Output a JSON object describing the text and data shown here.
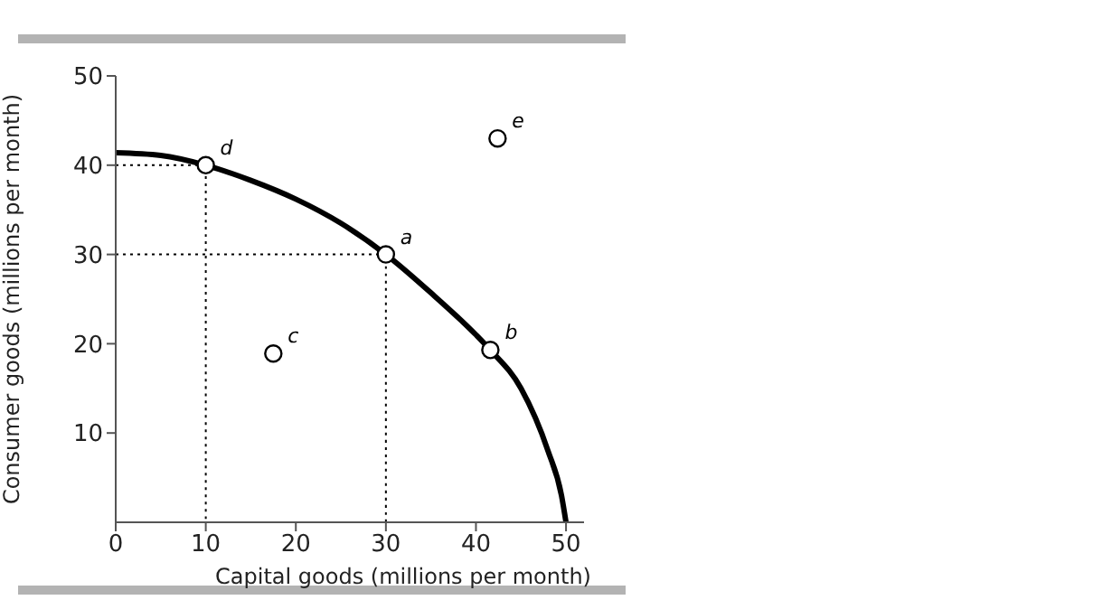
{
  "chart_data": {
    "type": "line",
    "xlabel": "Capital goods (millions per month)",
    "ylabel": "Consumer goods (millions  per month)",
    "xlim": [
      0,
      52
    ],
    "ylim": [
      0,
      50
    ],
    "xticks": [
      0,
      10,
      20,
      30,
      40,
      50
    ],
    "yticks": [
      10,
      20,
      30,
      40,
      50
    ],
    "grid": false,
    "series": [
      {
        "color": "#000000",
        "line_style": "solid",
        "marker": "none",
        "x": [
          0,
          5,
          10,
          15,
          20,
          25,
          30,
          35,
          40,
          41.6,
          45,
          48,
          49.5,
          50
        ],
        "values": [
          41.4,
          41.1,
          40,
          38.3,
          36.2,
          33.5,
          30,
          25.7,
          21,
          19.3,
          15,
          8,
          3,
          0
        ]
      },
      {
        "color": "#000000",
        "line_style": "dotted",
        "marker": "none",
        "x": [
          0,
          10,
          10
        ],
        "values": [
          40,
          40,
          0
        ]
      },
      {
        "color": "#000000",
        "line_style": "dotted",
        "marker": "none",
        "x": [
          0,
          30,
          30
        ],
        "values": [
          30,
          30,
          0
        ]
      },
      {
        "type": "scatter",
        "color": "#000000",
        "marker": "circle",
        "x": [
          30,
          41.6,
          17.5,
          10,
          42.4
        ],
        "values": [
          30,
          19.3,
          18.9,
          40,
          43
        ]
      }
    ],
    "annotations": [
      {
        "text": "a",
        "x": 30,
        "y": 30
      },
      {
        "text": "b",
        "x": 41.6,
        "y": 19.3
      },
      {
        "text": "c",
        "x": 17.5,
        "y": 18.9
      },
      {
        "text": "d",
        "x": 10,
        "y": 40
      },
      {
        "text": "e",
        "x": 42.4,
        "y": 43
      }
    ]
  }
}
